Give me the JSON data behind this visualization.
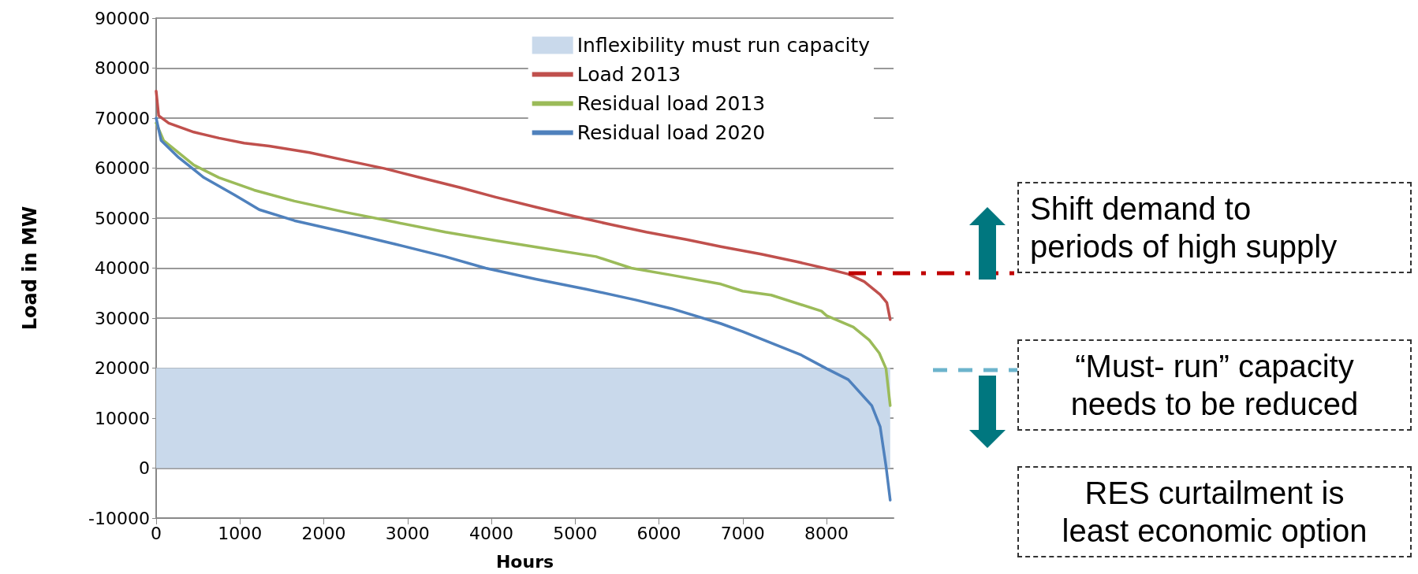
{
  "chart_data": {
    "type": "line",
    "xlabel": "Hours",
    "ylabel": "Load in MW",
    "xlim": [
      0,
      8800
    ],
    "xticks": [
      0,
      1000,
      2000,
      3000,
      4000,
      5000,
      6000,
      7000,
      8000
    ],
    "ylim": [
      -10000,
      90000
    ],
    "yticks": [
      -10000,
      0,
      10000,
      20000,
      30000,
      40000,
      50000,
      60000,
      70000,
      80000,
      90000
    ],
    "grid": "y",
    "legend": "top right",
    "marker": "none",
    "line_style": "solid",
    "series": [
      {
        "name": "Inflexibility must run capacity",
        "type": "area",
        "color": "#c9d9eb",
        "x": [
          0,
          8760
        ],
        "values": [
          20000,
          20000
        ]
      },
      {
        "name": "Load 2013",
        "color": "#c0504d",
        "x": [
          0,
          30,
          150,
          450,
          750,
          1050,
          1350,
          1830,
          2250,
          2730,
          3150,
          3630,
          4050,
          4530,
          4950,
          5430,
          5850,
          6330,
          6740,
          7220,
          7640,
          8000,
          8260,
          8450,
          8640,
          8720,
          8760
        ],
        "values": [
          75400,
          70500,
          69000,
          67200,
          66000,
          65000,
          64400,
          63100,
          61600,
          59900,
          58100,
          56100,
          54200,
          52200,
          50500,
          48700,
          47200,
          45700,
          44300,
          42800,
          41300,
          39900,
          38800,
          37300,
          34700,
          33100,
          29700
        ]
      },
      {
        "name": "Residual load 2013",
        "color": "#9bbb59",
        "x": [
          0,
          90,
          450,
          750,
          1170,
          1650,
          2250,
          2850,
          3450,
          4050,
          4650,
          5250,
          5670,
          6150,
          6740,
          7000,
          7340,
          7940,
          8000,
          8320,
          8510,
          8630,
          8710,
          8760
        ],
        "values": [
          69000,
          65500,
          60600,
          58100,
          55600,
          53400,
          51200,
          49200,
          47200,
          45500,
          43900,
          42300,
          40000,
          38600,
          36800,
          35400,
          34600,
          31400,
          30500,
          28200,
          25600,
          23000,
          19900,
          12500
        ]
      },
      {
        "name": "Residual load 2020",
        "color": "#4f81bd",
        "x": [
          0,
          60,
          270,
          570,
          930,
          1230,
          1650,
          2250,
          2850,
          3450,
          3930,
          4530,
          5130,
          5730,
          6150,
          6740,
          7000,
          7700,
          8000,
          8260,
          8540,
          8640,
          8710,
          8760
        ],
        "values": [
          70000,
          65500,
          62100,
          58100,
          54700,
          51700,
          49500,
          47200,
          44800,
          42300,
          40000,
          37800,
          35800,
          33600,
          31900,
          28900,
          27300,
          22600,
          19900,
          17700,
          12500,
          8300,
          400,
          -6400
        ]
      }
    ],
    "annotations": [
      {
        "text": "Shift demand to\nperiods of high supply",
        "x": 8260,
        "y": 39000
      },
      "“Must- run” capacity\nneeds to be reduced",
      "RES curtailment is\nleast economic option"
    ]
  }
}
